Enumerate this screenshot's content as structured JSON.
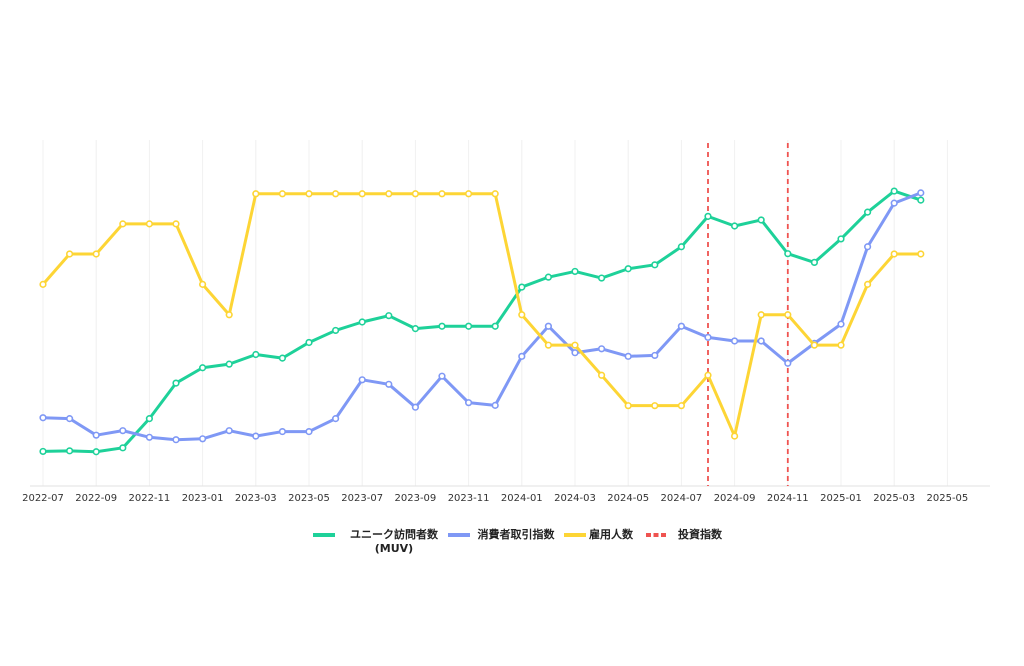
{
  "chart_data": {
    "type": "line",
    "x": [
      "2022-07",
      "2022-08",
      "2022-09",
      "2022-10",
      "2022-11",
      "2022-12",
      "2023-01",
      "2023-02",
      "2023-03",
      "2023-04",
      "2023-05",
      "2023-06",
      "2023-07",
      "2023-08",
      "2023-09",
      "2023-10",
      "2023-11",
      "2023-12",
      "2024-01",
      "2024-02",
      "2024-03",
      "2024-04",
      "2024-05",
      "2024-06",
      "2024-07",
      "2024-08",
      "2024-09",
      "2024-10",
      "2024-11",
      "2024-12",
      "2025-01",
      "2025-02",
      "2025-03",
      "2025-04"
    ],
    "x_tick_labels": [
      "2022-07",
      "2022-09",
      "2022-11",
      "2023-01",
      "2023-03",
      "2023-05",
      "2023-07",
      "2023-09",
      "2023-11",
      "2024-01",
      "2024-03",
      "2024-05",
      "2024-07",
      "2024-09",
      "2024-11",
      "2025-01",
      "2025-03",
      "2025-05"
    ],
    "xlim": [
      "2022-07",
      "2025-05"
    ],
    "ylim": [
      0,
      100
    ],
    "y_axis_labels_shown": false,
    "grid": "vertical",
    "legend_position": "bottom",
    "series": [
      {
        "name": "ユニーク訪問者数\n(MUV)",
        "color": "#1ed199",
        "values": [
          6.5,
          6.7,
          6.4,
          7.7,
          17.4,
          29.2,
          34.3,
          35.5,
          38.7,
          37.5,
          42.7,
          46.7,
          49.5,
          51.6,
          47.3,
          48.1,
          48.1,
          48.1,
          61.1,
          64.4,
          66.3,
          64.1,
          67.2,
          68.5,
          74.5,
          84.6,
          81.4,
          83.4,
          72.2,
          69.3,
          77.1,
          86.0,
          93.0,
          90.0
        ]
      },
      {
        "name": "消費者取引指数",
        "color": "#7f98f5",
        "values": [
          17.7,
          17.4,
          11.9,
          13.4,
          11.2,
          10.4,
          10.7,
          13.4,
          11.6,
          13.1,
          13.1,
          17.4,
          30.3,
          28.8,
          21.2,
          31.5,
          22.7,
          21.8,
          38.1,
          48.1,
          39.3,
          40.6,
          38.1,
          38.4,
          48.1,
          44.4,
          43.2,
          43.2,
          35.8,
          42.4,
          48.8,
          74.5,
          89.0,
          92.4
        ]
      },
      {
        "name": "雇用人数",
        "color": "#fdd535",
        "values": [
          62.0,
          72.1,
          72.1,
          82.1,
          82.1,
          82.1,
          62.0,
          51.9,
          92.1,
          92.1,
          92.1,
          92.1,
          92.1,
          92.1,
          92.1,
          92.1,
          92.1,
          92.1,
          51.9,
          41.8,
          41.8,
          31.8,
          21.7,
          21.7,
          21.7,
          31.8,
          11.6,
          51.9,
          51.9,
          41.8,
          41.8,
          62.0,
          72.1,
          72.1
        ]
      }
    ],
    "vertical_markers": {
      "name": "投資指数",
      "color": "#ef5350",
      "x": [
        "2024-08",
        "2024-11"
      ]
    }
  }
}
